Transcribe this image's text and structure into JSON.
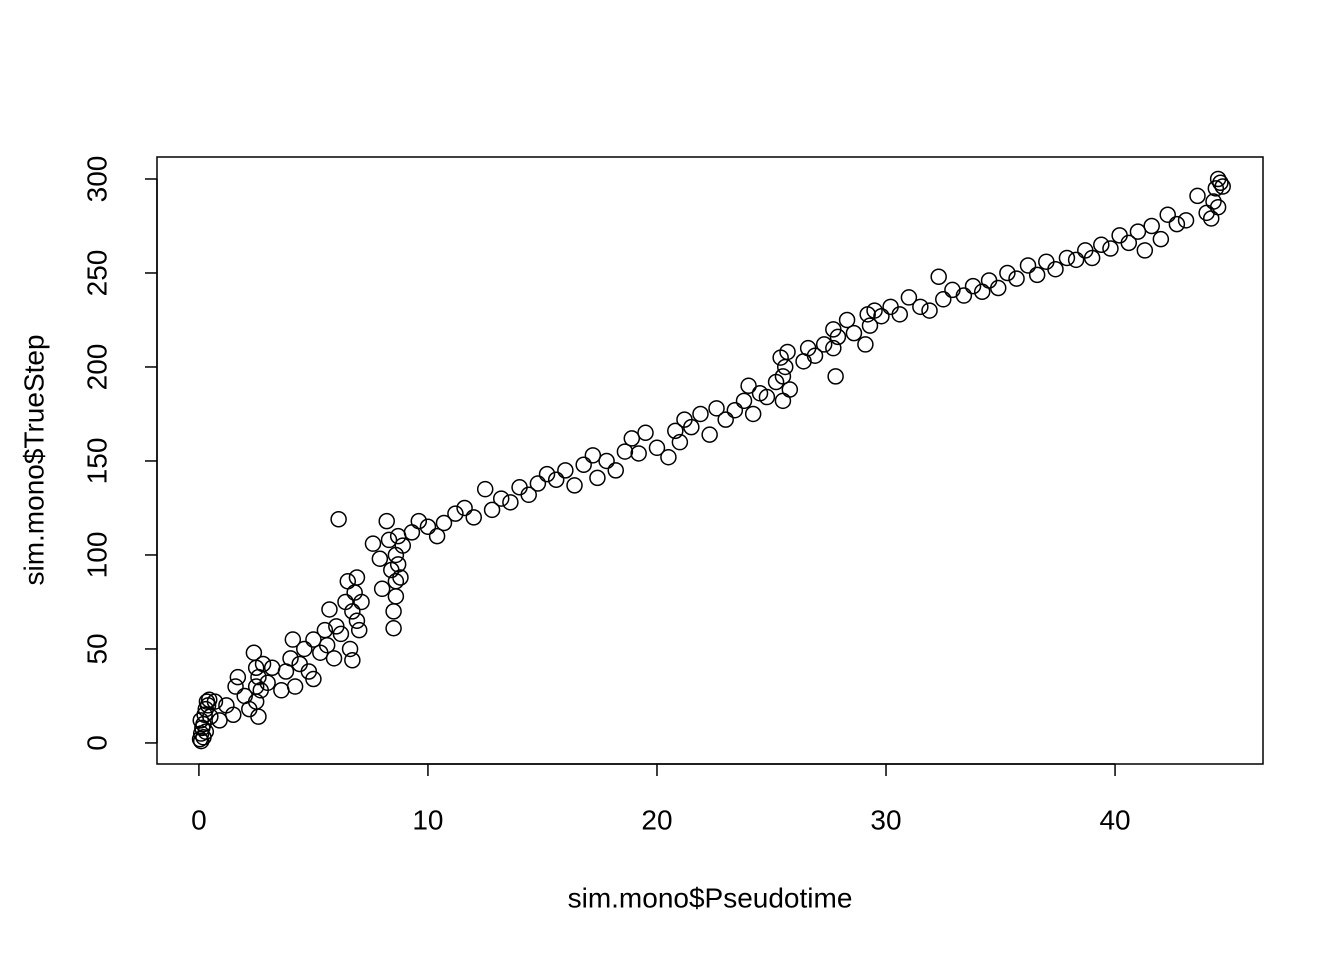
{
  "chart_data": {
    "type": "scatter",
    "x_label": "sim.mono$Pseudotime",
    "y_label": "sim.mono$TrueStep",
    "color": "#000000",
    "xlim": [
      -1.83,
      46.46
    ],
    "ylim": [
      -11.2,
      311.7
    ],
    "xticks": [
      0,
      10,
      20,
      30,
      40
    ],
    "yticks": [
      0,
      50,
      100,
      150,
      200,
      250,
      300
    ],
    "x": [
      0.05,
      0.1,
      0.15,
      0.08,
      0.2,
      0.25,
      0.3,
      0.35,
      0.4,
      0.1,
      0.2,
      0.45,
      0.3,
      0.5,
      0.7,
      0.9,
      1.2,
      1.5,
      1.6,
      1.7,
      2.0,
      2.2,
      2.4,
      2.5,
      2.5,
      2.5,
      2.6,
      2.6,
      2.7,
      2.8,
      3.0,
      3.2,
      3.6,
      3.8,
      4.0,
      4.1,
      4.2,
      4.4,
      4.6,
      4.8,
      5.0,
      5.0,
      5.3,
      5.5,
      5.6,
      5.7,
      5.9,
      6.0,
      6.1,
      6.2,
      6.4,
      6.5,
      6.6,
      6.7,
      6.7,
      6.8,
      6.9,
      6.9,
      7.0,
      7.1,
      7.6,
      7.9,
      8.0,
      8.2,
      8.3,
      8.4,
      8.5,
      8.5,
      8.6,
      8.6,
      8.6,
      8.7,
      8.7,
      8.8,
      8.9,
      9.3,
      9.6,
      10.0,
      10.4,
      10.7,
      11.2,
      11.6,
      12.0,
      12.5,
      12.8,
      13.2,
      13.6,
      14.0,
      14.4,
      14.8,
      15.2,
      15.6,
      16.0,
      16.4,
      16.8,
      17.2,
      17.4,
      17.8,
      18.2,
      18.6,
      18.9,
      19.2,
      19.5,
      20.0,
      20.5,
      20.8,
      21.0,
      21.2,
      21.5,
      21.9,
      22.3,
      22.6,
      23.0,
      23.4,
      23.8,
      24.0,
      24.2,
      24.5,
      24.8,
      25.2,
      25.4,
      25.5,
      25.5,
      25.6,
      25.7,
      25.8,
      26.4,
      26.6,
      26.9,
      27.3,
      27.7,
      27.7,
      27.8,
      27.9,
      28.3,
      28.6,
      29.1,
      29.2,
      29.3,
      29.5,
      29.8,
      30.2,
      30.6,
      31.0,
      31.5,
      31.9,
      32.3,
      32.5,
      32.9,
      33.4,
      33.8,
      34.2,
      34.5,
      34.9,
      35.3,
      35.7,
      36.2,
      36.6,
      37.0,
      37.4,
      37.9,
      38.3,
      38.7,
      39.0,
      39.4,
      39.8,
      40.2,
      40.6,
      41.0,
      41.3,
      41.6,
      42.0,
      42.3,
      42.7,
      43.1,
      43.6,
      44.0,
      44.2,
      44.3,
      44.4,
      44.5,
      44.5,
      44.6,
      44.7
    ],
    "values": [
      2,
      5,
      8,
      12,
      3,
      15,
      18,
      22,
      20,
      1,
      10,
      23,
      6,
      14,
      22,
      12,
      20,
      15,
      30,
      35,
      25,
      18,
      48,
      40,
      30,
      22,
      14,
      35,
      28,
      42,
      32,
      40,
      28,
      38,
      45,
      55,
      30,
      42,
      50,
      38,
      34,
      55,
      48,
      60,
      52,
      71,
      45,
      62,
      119,
      58,
      75,
      86,
      50,
      44,
      70,
      80,
      88,
      65,
      60,
      75,
      106,
      98,
      82,
      118,
      108,
      92,
      61,
      70,
      78,
      86,
      100,
      95,
      110,
      88,
      105,
      112,
      118,
      115,
      110,
      117,
      122,
      125,
      120,
      135,
      124,
      130,
      128,
      136,
      132,
      138,
      143,
      140,
      145,
      137,
      148,
      153,
      141,
      150,
      145,
      155,
      162,
      154,
      165,
      157,
      152,
      166,
      160,
      172,
      168,
      175,
      164,
      178,
      172,
      177,
      182,
      190,
      175,
      186,
      184,
      192,
      205,
      182,
      195,
      200,
      208,
      188,
      203,
      210,
      206,
      212,
      220,
      210,
      195,
      216,
      225,
      218,
      212,
      228,
      222,
      230,
      227,
      232,
      228,
      237,
      232,
      230,
      248,
      236,
      241,
      238,
      243,
      240,
      246,
      242,
      250,
      247,
      254,
      249,
      256,
      252,
      258,
      257,
      262,
      258,
      265,
      263,
      270,
      266,
      272,
      262,
      275,
      268,
      281,
      276,
      278,
      291,
      282,
      279,
      288,
      295,
      300,
      285,
      298,
      296
    ]
  }
}
